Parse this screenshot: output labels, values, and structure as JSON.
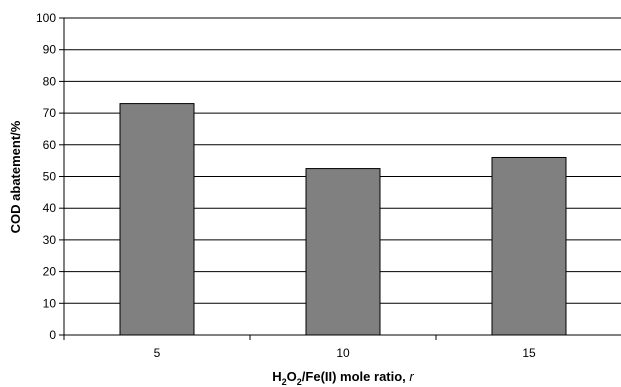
{
  "chart_data": {
    "type": "bar",
    "categories": [
      "5",
      "10",
      "15"
    ],
    "values": [
      73,
      52.5,
      56
    ],
    "xlabel": {
      "pre": "H",
      "sub1": "2",
      "mid1": "O",
      "sub2": "2",
      "mid2": "/Fe(II) mole ratio, ",
      "italic": "r"
    },
    "ylabel": "COD abatement/%",
    "ylim": [
      0,
      100
    ],
    "yticks": [
      0,
      10,
      20,
      30,
      40,
      50,
      60,
      70,
      80,
      90,
      100
    ],
    "grid": true,
    "legend": "none",
    "colors": {
      "bar_fill": "#808080",
      "bar_stroke": "#000000",
      "grid": "#000000",
      "axis": "#000000"
    }
  }
}
